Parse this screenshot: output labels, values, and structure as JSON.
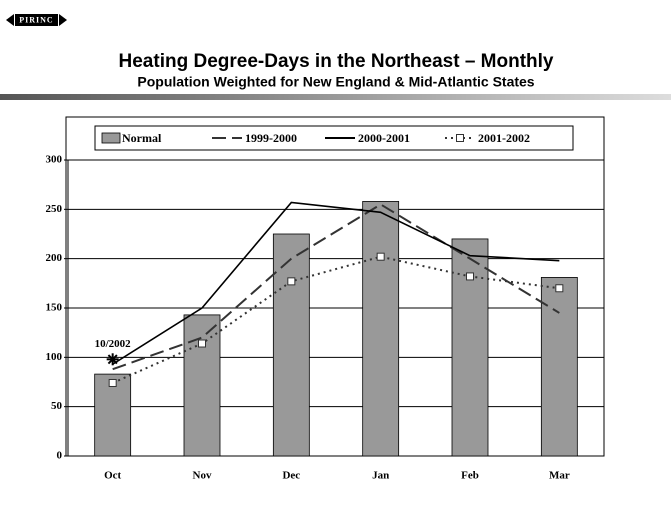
{
  "logo": "PIRINC",
  "chart_data": {
    "type": "bar",
    "title": "Heating Degree-Days in the Northeast – Monthly",
    "subtitle": "Population Weighted for New England & Mid-Atlantic States",
    "categories": [
      "Oct",
      "Nov",
      "Dec",
      "Jan",
      "Feb",
      "Mar"
    ],
    "series": [
      {
        "name": "Normal",
        "style": "bar",
        "color": "#999999",
        "values": [
          83,
          143,
          225,
          258,
          220,
          181
        ]
      },
      {
        "name": "1999-2000",
        "style": "dashed",
        "color": "#333333",
        "values": [
          88,
          120,
          200,
          255,
          200,
          145
        ]
      },
      {
        "name": "2000-2001",
        "style": "solid",
        "color": "#000000",
        "values": [
          93,
          150,
          257,
          247,
          203,
          198
        ]
      },
      {
        "name": "2001-2002",
        "style": "dotted",
        "marker": "square",
        "color": "#333333",
        "values": [
          74,
          114,
          177,
          202,
          182,
          170
        ]
      }
    ],
    "annotation": {
      "text": "10/2002",
      "category": "Oct",
      "value": 98
    },
    "ylim": [
      0,
      300
    ],
    "yticks": [
      0,
      50,
      100,
      150,
      200,
      250,
      300
    ],
    "grid": true
  }
}
